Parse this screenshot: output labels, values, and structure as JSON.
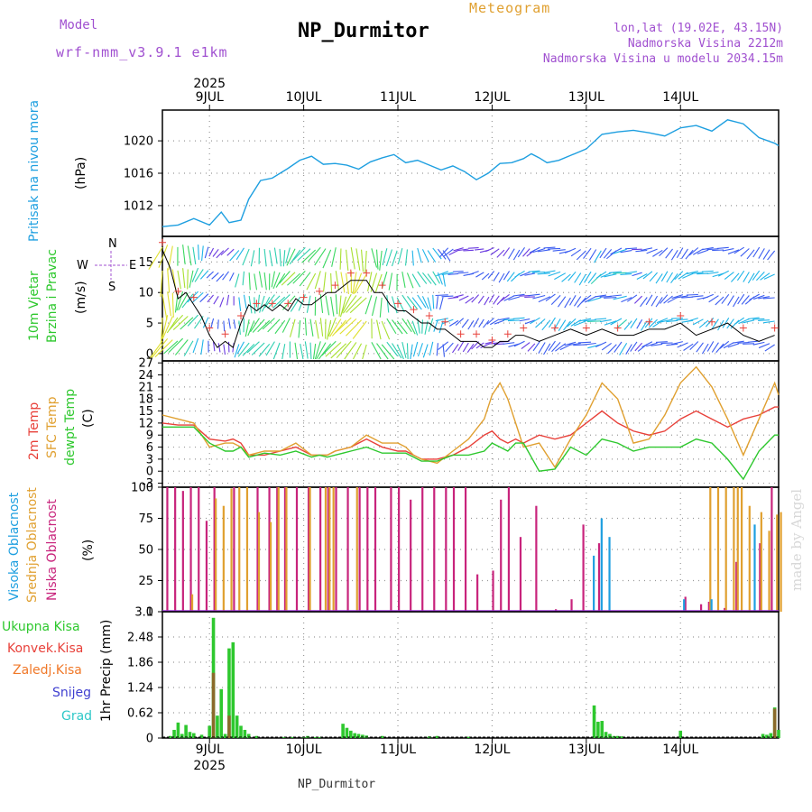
{
  "header": {
    "model_label": "Model",
    "model_name": "wrf-nmm_v3.9.1 e1km",
    "title": "NP_Durmitor",
    "meteogram": "Meteogram",
    "lonlat": "lon,lat (19.02E, 43.15N)",
    "elevation": "Nadmorska Visina 2212m",
    "model_elevation": "Nadmorska Visina u modelu 2034.15m",
    "footer_station": "NP_Durmitor",
    "watermark": "made by Angel"
  },
  "colors": {
    "pressure": "#1e9fe0",
    "t2m": "#e8413a",
    "tsfc": "#e0a030",
    "dewpt": "#2ec82e",
    "cloud_high": "#1e9fe0",
    "cloud_mid": "#e0a030",
    "cloud_low": "#c8247c",
    "precip_total": "#2ec82e",
    "precip_conv": "#e8413a",
    "precip_frz": "#f07828",
    "snow": "#4040d0",
    "grad": "#2ec8c8"
  },
  "chart_data": [
    {
      "panel": "time-axis",
      "type": "line",
      "year": "2025",
      "days": [
        "9JUL",
        "10JUL",
        "11JUL",
        "12JUL",
        "13JUL",
        "14JUL"
      ],
      "x_range_hours": [
        -12,
        145
      ]
    },
    {
      "panel": "pressure",
      "type": "line",
      "title": "Pritisak na nivou mora",
      "ylabel": "(hPa)",
      "yticks": [
        "1012",
        "1016",
        "1020"
      ],
      "ylim": [
        1008.2,
        1023.8
      ],
      "x_hours": [
        -12,
        -8,
        -4,
        0,
        3,
        5,
        8,
        10,
        13,
        16,
        20,
        23,
        26,
        29,
        32,
        35,
        38,
        41,
        44,
        47,
        50,
        53,
        56,
        59,
        62,
        65,
        68,
        71,
        74,
        77,
        80,
        82,
        84,
        86,
        89,
        92,
        96,
        100,
        104,
        108,
        112,
        116,
        120,
        124,
        128,
        132,
        136,
        140,
        144,
        145
      ],
      "values": [
        1009.4,
        1009.6,
        1010.4,
        1009.6,
        1011.2,
        1009.9,
        1010.2,
        1012.8,
        1015.1,
        1015.4,
        1016.6,
        1017.6,
        1018.1,
        1017.1,
        1017.2,
        1017.0,
        1016.5,
        1017.4,
        1017.9,
        1018.3,
        1017.3,
        1017.6,
        1017.0,
        1016.4,
        1016.9,
        1016.2,
        1015.2,
        1016.0,
        1017.2,
        1017.3,
        1017.8,
        1018.4,
        1017.9,
        1017.3,
        1017.6,
        1018.2,
        1019.0,
        1020.8,
        1021.1,
        1021.3,
        1021.0,
        1020.6,
        1021.6,
        1021.9,
        1021.2,
        1022.6,
        1022.1,
        1020.4,
        1019.7,
        1019.4
      ]
    },
    {
      "panel": "wind",
      "type": "line",
      "title": "10m Vjetar Brzina i Pravac",
      "ylabel": "(m/s)",
      "compass": [
        "N",
        "E",
        "S",
        "W"
      ],
      "yticks": [
        "0",
        "5",
        "10",
        "15"
      ],
      "ylim": [
        -1.2,
        19.2
      ],
      "x_hours": [
        -12,
        -10,
        -8,
        -6,
        -4,
        -2,
        0,
        2,
        4,
        6,
        8,
        10,
        12,
        14,
        16,
        18,
        20,
        22,
        24,
        26,
        28,
        30,
        32,
        34,
        36,
        38,
        40,
        42,
        44,
        46,
        48,
        50,
        52,
        54,
        56,
        58,
        60,
        62,
        64,
        66,
        68,
        70,
        72,
        74,
        76,
        78,
        80,
        84,
        88,
        92,
        96,
        100,
        104,
        108,
        112,
        116,
        120,
        124,
        128,
        132,
        136,
        140,
        144
      ],
      "series": [
        {
          "name": "speed",
          "values": [
            17,
            14,
            9,
            10,
            8,
            6,
            3,
            1,
            2,
            1,
            5,
            8,
            7,
            8,
            7,
            8,
            7,
            9,
            8,
            8,
            9,
            10,
            10,
            11,
            12,
            12,
            12,
            10,
            10,
            8,
            7,
            7,
            6,
            5,
            5,
            4,
            4,
            3,
            2,
            2,
            2,
            1,
            1,
            2,
            2,
            3,
            3,
            2,
            3,
            4,
            3,
            4,
            3,
            3,
            4,
            4,
            5,
            3,
            4,
            5,
            3,
            2,
            3
          ]
        }
      ]
    },
    {
      "panel": "temperature",
      "type": "line",
      "title": "2m Temp / SFC Temp / dewpt Temp",
      "ylabel": "(C)",
      "yticks": [
        "-3",
        "0",
        "3",
        "6",
        "9",
        "12",
        "15",
        "18",
        "21",
        "24",
        "27"
      ],
      "ylim": [
        -4,
        27.5
      ],
      "x_hours": [
        -12,
        -8,
        -4,
        0,
        4,
        6,
        8,
        10,
        14,
        18,
        22,
        26,
        28,
        30,
        32,
        36,
        40,
        44,
        48,
        50,
        52,
        54,
        58,
        62,
        66,
        70,
        72,
        74,
        76,
        78,
        80,
        84,
        88,
        92,
        96,
        100,
        104,
        108,
        112,
        116,
        120,
        124,
        128,
        132,
        136,
        140,
        144,
        145
      ],
      "series": [
        {
          "name": "2m Temp",
          "values": [
            12,
            11.5,
            11.5,
            8,
            7.5,
            8,
            7,
            4,
            4,
            5,
            6,
            4,
            4,
            4,
            5,
            6,
            8,
            6,
            5,
            5,
            4,
            3,
            3,
            4,
            6,
            9,
            10,
            8,
            7,
            8,
            7,
            9,
            8,
            9,
            12,
            15,
            12,
            10,
            9,
            10,
            13,
            15,
            13,
            11,
            13,
            14,
            16,
            16
          ]
        },
        {
          "name": "SFC Temp",
          "values": [
            14,
            13,
            12,
            6,
            7,
            7,
            6,
            4,
            5,
            5,
            7,
            4,
            4,
            4,
            5,
            6,
            9,
            7,
            7,
            6,
            4,
            3,
            2,
            5,
            8,
            13,
            19,
            22,
            18,
            12,
            6,
            7,
            1,
            8,
            14,
            22,
            18,
            7,
            8,
            14,
            22,
            26,
            21,
            13,
            4,
            13,
            22,
            19
          ]
        },
        {
          "name": "dewpt Temp",
          "values": [
            11,
            11,
            11,
            7,
            5,
            5,
            6,
            3.5,
            4.5,
            4,
            5,
            3.5,
            4,
            3.5,
            4,
            5,
            6,
            4.5,
            4.5,
            4.5,
            3.5,
            2.5,
            2.5,
            4,
            4,
            5,
            7,
            6,
            5,
            7,
            7,
            0,
            0.5,
            6,
            4,
            8,
            7,
            5,
            6,
            6,
            6,
            8,
            7,
            3,
            -2,
            5,
            9,
            9
          ]
        }
      ]
    },
    {
      "panel": "clouds",
      "type": "bar",
      "title": "Visoka Oblacnost / Srednja Oblacnost / Niska Oblacnost",
      "ylabel": "(%)",
      "yticks": [
        "0",
        "25",
        "50",
        "75",
        "100"
      ],
      "ylim": [
        0,
        100
      ],
      "series": [
        {
          "name": "Niska Oblacnost",
          "x_hours": [
            -11,
            -9,
            -7,
            -5,
            -3,
            -1,
            1,
            6,
            12,
            15,
            17,
            19,
            22,
            25,
            28,
            30,
            32,
            35,
            38,
            40,
            42,
            46,
            48,
            51,
            54,
            57,
            60,
            62,
            65,
            68,
            72,
            74,
            76,
            79,
            83,
            85,
            86,
            88,
            92,
            95,
            99,
            104,
            110,
            116,
            121,
            125,
            127,
            131,
            134,
            140,
            143
          ],
          "values": [
            100,
            100,
            97,
            100,
            100,
            73,
            100,
            100,
            100,
            100,
            100,
            100,
            100,
            100,
            100,
            100,
            100,
            100,
            100,
            100,
            100,
            100,
            100,
            90,
            100,
            100,
            100,
            100,
            100,
            30,
            33,
            90,
            100,
            60,
            85,
            1,
            1,
            2,
            10,
            70,
            55,
            1,
            1,
            1,
            12,
            6,
            8,
            3,
            40,
            55,
            100
          ]
        },
        {
          "name": "Srednja Oblacnost",
          "x_hours": [
            -5,
            1,
            3,
            5,
            7,
            9,
            12,
            15,
            17,
            19,
            25,
            29,
            30,
            31,
            37,
            127,
            129,
            131,
            133,
            134,
            135,
            137,
            140,
            142,
            144,
            145
          ],
          "values": [
            14,
            91,
            85,
            99,
            100,
            100,
            80,
            72,
            100,
            100,
            100,
            100,
            100,
            100,
            100,
            100,
            100,
            100,
            100,
            100,
            100,
            85,
            80,
            65,
            78,
            80
          ]
        },
        {
          "name": "Visoka Oblacnost",
          "x_hours": [
            98,
            100,
            102,
            121,
            128,
            139
          ],
          "values": [
            45,
            75,
            60,
            10,
            10,
            70
          ]
        }
      ]
    },
    {
      "panel": "precipitation",
      "type": "bar",
      "title": "1hr Precip",
      "ylabel": "(mm)",
      "legend": [
        "Ukupna Kisa",
        "Konvek.Kisa",
        "Zaledj.Kisa",
        "Snijeg",
        "Grad"
      ],
      "yticks": [
        "0",
        "0.62",
        "1.24",
        "1.86",
        "2.48",
        "3.1"
      ],
      "ylim": [
        0,
        3.1
      ],
      "x_hours": [
        -10,
        -9,
        -8,
        -7,
        -6,
        -5,
        -4,
        -2,
        0,
        1,
        2,
        3,
        4,
        5,
        6,
        7,
        8,
        9,
        10,
        12,
        19,
        21,
        24,
        25,
        27,
        28,
        34,
        35,
        36,
        37,
        38,
        39,
        40,
        44,
        56,
        58,
        66,
        98,
        99,
        100,
        101,
        102,
        103,
        104,
        105,
        120,
        141,
        142,
        143,
        144,
        145
      ],
      "series": [
        {
          "name": "Ukupna Kisa",
          "values": [
            0.05,
            0.2,
            0.38,
            0.1,
            0.32,
            0.15,
            0.12,
            0.08,
            0.3,
            2.95,
            0.55,
            1.2,
            0.1,
            2.2,
            2.35,
            0.55,
            0.3,
            0.2,
            0.1,
            0.05,
            0.02,
            0.02,
            0.02,
            0.05,
            0.02,
            0.02,
            0.35,
            0.25,
            0.18,
            0.12,
            0.1,
            0.08,
            0.06,
            0.05,
            0.04,
            0.05,
            0.03,
            0.8,
            0.4,
            0.42,
            0.15,
            0.1,
            0.05,
            0.05,
            0.04,
            0.18,
            0.1,
            0.08,
            0.12,
            0.75,
            0.2
          ]
        },
        {
          "name": "Konvek.Kisa",
          "values": [
            0,
            0,
            0,
            0,
            0,
            0,
            0,
            0,
            0,
            1.6,
            0,
            0,
            0,
            0.55,
            0,
            0,
            0,
            0,
            0,
            0,
            0,
            0,
            0,
            0,
            0,
            0,
            0,
            0,
            0,
            0,
            0,
            0,
            0,
            0,
            0,
            0,
            0,
            0,
            0,
            0,
            0,
            0,
            0,
            0,
            0,
            0,
            0,
            0,
            0,
            0.72,
            0
          ]
        }
      ]
    }
  ]
}
